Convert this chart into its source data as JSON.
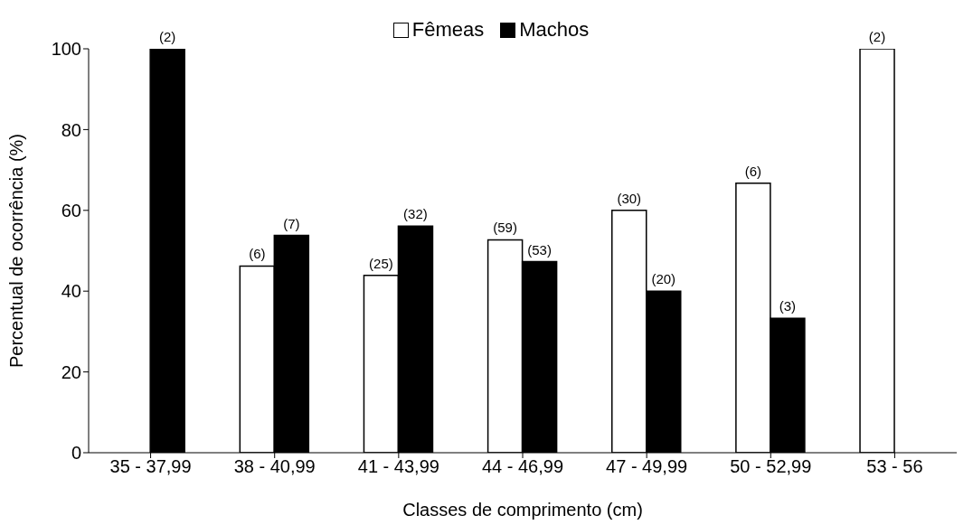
{
  "chart_data": {
    "type": "bar",
    "xlabel": "Classes de comprimento (cm)",
    "ylabel": "Percentual de ocorrência  (%)",
    "categories": [
      "35 - 37,99",
      "38 - 40,99",
      "41 - 43,99",
      "44 - 46,99",
      "47 - 49,99",
      "50 - 52,99",
      "53 - 56"
    ],
    "series": [
      {
        "name": "Fêmeas",
        "color": "#ffffff",
        "values": [
          null,
          46.2,
          43.9,
          52.7,
          60,
          66.7,
          100
        ]
      },
      {
        "name": "Machos",
        "color": "#000000",
        "values": [
          100,
          53.8,
          56.1,
          47.3,
          40,
          33.3,
          null
        ]
      }
    ],
    "annotations": [
      {
        "text": "(2)",
        "x": "35 - 37,99",
        "y": 100
      },
      {
        "text": "(6)",
        "x": "38 - 40,99",
        "y": 46.2
      },
      {
        "text": "(7)",
        "x": "38 - 40,99",
        "y": 53.8
      },
      {
        "text": "(25)",
        "x": "41 - 43,99",
        "y": 43.9
      },
      {
        "text": "(32)",
        "x": "41 - 43,99",
        "y": 56.1
      },
      {
        "text": "(59)",
        "x": "44 - 46,99",
        "y": 52.7
      },
      {
        "text": "(53)",
        "x": "44 - 46,99",
        "y": 47.3
      },
      {
        "text": "(30)",
        "x": "47 - 49,99",
        "y": 60
      },
      {
        "text": "(20)",
        "x": "47 - 49,99",
        "y": 40
      },
      {
        "text": "(6)",
        "x": "50 - 52,99",
        "y": 66.7
      },
      {
        "text": "(3)",
        "x": "50 - 52,99",
        "y": 33.3
      },
      {
        "text": "(2)",
        "x": "53 - 56",
        "y": 100
      }
    ],
    "ylim": [
      0,
      100
    ],
    "yticks": [
      0,
      20,
      40,
      60,
      80,
      100
    ],
    "grid": false,
    "legend": "top"
  }
}
